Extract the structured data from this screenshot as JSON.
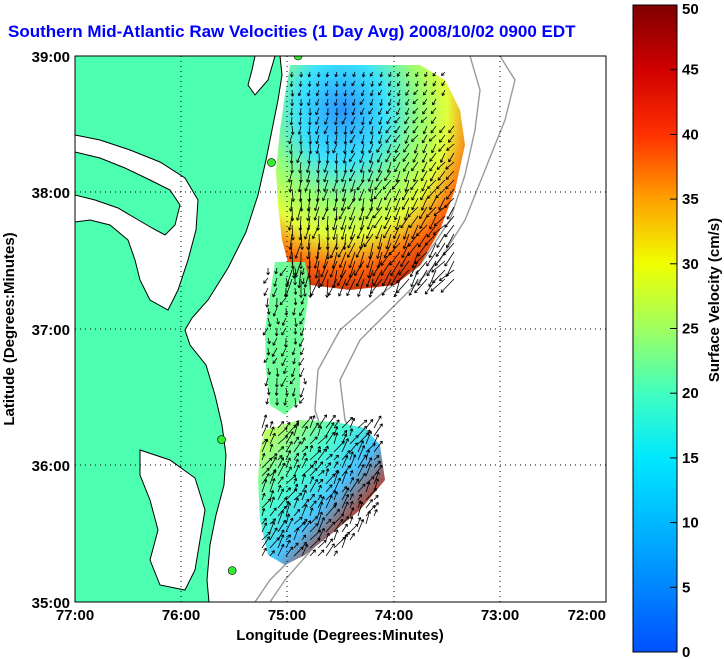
{
  "title": "Southern Mid-Atlantic Raw Velocities (1 Day Avg) 2008/10/02 0900 EDT",
  "x_axis": {
    "label": "Longitude (Degrees:Minutes)",
    "ticks": [
      "77:00",
      "76:00",
      "75:00",
      "74:00",
      "73:00",
      "72:00"
    ]
  },
  "y_axis": {
    "label": "Latitude (Degrees:Minutes)",
    "ticks": [
      "39:00",
      "38:00",
      "37:00",
      "36:00",
      "35:00"
    ]
  },
  "colorbar": {
    "label": "Surface Velocity (cm/s)",
    "ticks": [
      "0",
      "5",
      "10",
      "15",
      "20",
      "25",
      "30",
      "35",
      "40",
      "45",
      "50"
    ],
    "min": 0,
    "max": 50
  },
  "colors": {
    "land": "#4dffb0",
    "title": "#0000ff",
    "station": "#33ee33"
  },
  "stations": [
    {
      "lon": -74.9,
      "lat": 39.0
    },
    {
      "lon": -75.15,
      "lat": 38.22
    },
    {
      "lon": -75.62,
      "lat": 36.19
    },
    {
      "lon": -75.52,
      "lat": 35.23
    }
  ]
}
